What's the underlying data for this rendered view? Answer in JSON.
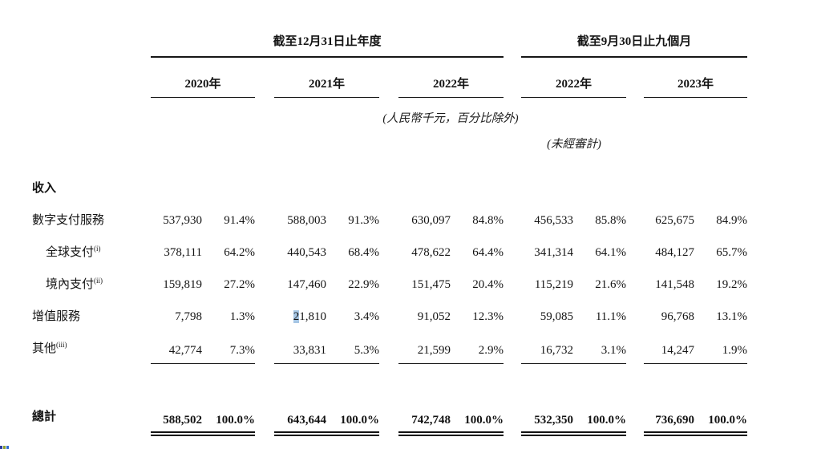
{
  "table": {
    "col_groups": [
      {
        "title": "截至12月31日止年度",
        "years": [
          "2020年",
          "2021年",
          "2022年"
        ]
      },
      {
        "title": "截至9月30日止九個月",
        "years": [
          "2022年",
          "2023年"
        ]
      }
    ],
    "notes": {
      "units": "(人民幣千元，百分比除外)",
      "unaudited": "(未經審計)"
    },
    "section": "收入",
    "rows": [
      {
        "label": "數字支付服務",
        "sup": "",
        "indent": false,
        "values": [
          "537,930",
          "91.4%",
          "588,003",
          "91.3%",
          "630,097",
          "84.8%",
          "456,533",
          "85.8%",
          "625,675",
          "84.9%"
        ]
      },
      {
        "label": "全球支付",
        "sup": "(i)",
        "indent": true,
        "values": [
          "378,111",
          "64.2%",
          "440,543",
          "68.4%",
          "478,622",
          "64.4%",
          "341,314",
          "64.1%",
          "484,127",
          "65.7%"
        ]
      },
      {
        "label": "境內支付",
        "sup": "(ii)",
        "indent": true,
        "values": [
          "159,819",
          "27.2%",
          "147,460",
          "22.9%",
          "151,475",
          "20.4%",
          "115,219",
          "21.6%",
          "141,548",
          "19.2%"
        ]
      },
      {
        "label": "增值服務",
        "sup": "",
        "indent": false,
        "highlight": {
          "index": 2,
          "chars": 1
        },
        "values": [
          "7,798",
          "1.3%",
          "21,810",
          "3.4%",
          "91,052",
          "12.3%",
          "59,085",
          "11.1%",
          "96,768",
          "13.1%"
        ]
      },
      {
        "label": "其他",
        "sup": "(iii)",
        "indent": false,
        "rule_under": true,
        "values": [
          "42,774",
          "7.3%",
          "33,831",
          "5.3%",
          "21,599",
          "2.9%",
          "16,732",
          "3.1%",
          "14,247",
          "1.9%"
        ]
      }
    ],
    "total": {
      "label": "總計",
      "values": [
        "588,502",
        "100.0%",
        "643,644",
        "100.0%",
        "742,748",
        "100.0%",
        "532,350",
        "100.0%",
        "736,690",
        "100.0%"
      ]
    }
  },
  "colors": {
    "text": "#141414",
    "rule": "#161616",
    "selection_highlight": "#a6c6e4"
  },
  "artifact": {
    "colors": [
      "#2a3b9e",
      "#8a9e2a",
      "#2f6bd0"
    ]
  }
}
